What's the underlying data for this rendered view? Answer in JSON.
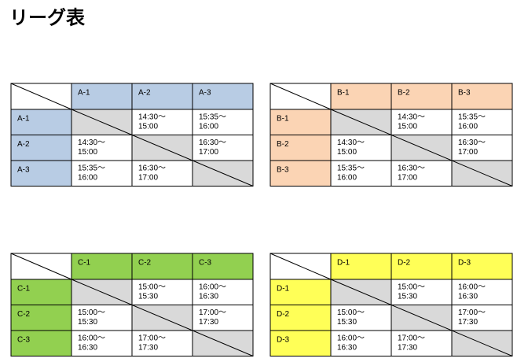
{
  "header": {
    "title": "リーグ表"
  },
  "tables": [
    {
      "headers": [
        "A-1",
        "A-2",
        "A-3"
      ],
      "rows": [
        {
          "label": "A-1",
          "cells": [
            null,
            [
              "14:30～",
              "15:00"
            ],
            [
              "15:35～",
              "16:00"
            ]
          ]
        },
        {
          "label": "A-2",
          "cells": [
            [
              "14:30～",
              "15:00"
            ],
            null,
            [
              "16:30～",
              "17:00"
            ]
          ]
        },
        {
          "label": "A-3",
          "cells": [
            [
              "15:35～",
              "16:00"
            ],
            [
              "16:30～",
              "17:00"
            ],
            null
          ]
        }
      ]
    },
    {
      "headers": [
        "B-1",
        "B-2",
        "B-3"
      ],
      "rows": [
        {
          "label": "B-1",
          "cells": [
            null,
            [
              "14:30～",
              "15:00"
            ],
            [
              "15:35～",
              "16:00"
            ]
          ]
        },
        {
          "label": "B-2",
          "cells": [
            [
              "14:30～",
              "15:00"
            ],
            null,
            [
              "16:30～",
              "17:00"
            ]
          ]
        },
        {
          "label": "B-3",
          "cells": [
            [
              "15:35～",
              "16:00"
            ],
            [
              "16:30～",
              "17:00"
            ],
            null
          ]
        }
      ]
    },
    {
      "headers": [
        "C-1",
        "C-2",
        "C-3"
      ],
      "rows": [
        {
          "label": "C-1",
          "cells": [
            null,
            [
              "15:00～",
              "15:30"
            ],
            [
              "16:00～",
              "16:30"
            ]
          ]
        },
        {
          "label": "C-2",
          "cells": [
            [
              "15:00～",
              "15:30"
            ],
            null,
            [
              "17:00～",
              "17:30"
            ]
          ]
        },
        {
          "label": "C-3",
          "cells": [
            [
              "16:00～",
              "16:30"
            ],
            [
              "17:00～",
              "17:30"
            ],
            null
          ]
        }
      ]
    },
    {
      "headers": [
        "D-1",
        "D-2",
        "D-3"
      ],
      "rows": [
        {
          "label": "D-1",
          "cells": [
            null,
            [
              "15:00～",
              "15:30"
            ],
            [
              "16:00～",
              "16:30"
            ]
          ]
        },
        {
          "label": "D-2",
          "cells": [
            [
              "15:00～",
              "15:30"
            ],
            null,
            [
              "17:00～",
              "17:30"
            ]
          ]
        },
        {
          "label": "D-3",
          "cells": [
            [
              "16:00～",
              "16:30"
            ],
            [
              "17:00～",
              "17:30"
            ],
            null
          ]
        }
      ]
    }
  ]
}
